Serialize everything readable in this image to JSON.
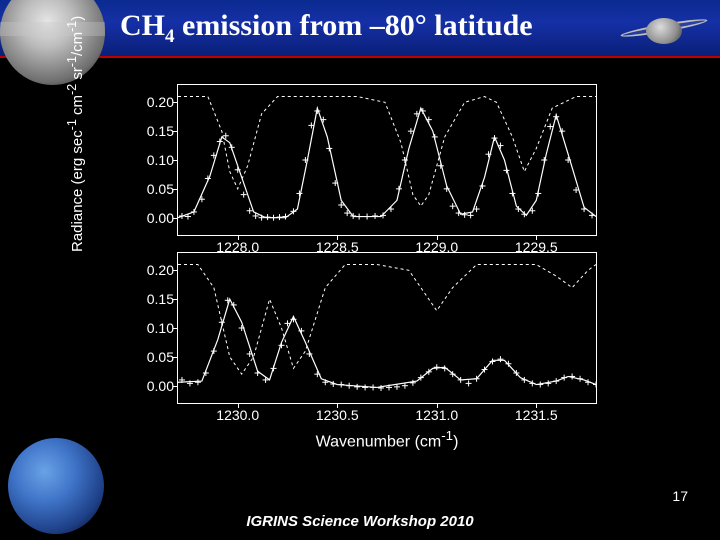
{
  "slide": {
    "title_html": "CH<sub>4</sub> emission from –80° latitude",
    "footer": "IGRINS Science Workshop 2010",
    "page_number": "17"
  },
  "figure": {
    "ylabel_html": "Radiance (erg sec<sup>-1</sup> cm<sup>-2</sup> sr<sup>-1</sup>/cm<sup>-1</sup>)",
    "xlabel_html": "Wavenumber (cm<sup>-1</sup>)",
    "panel_bg": "#000000",
    "axis_color": "#ffffff",
    "marker_color": "#ffffff",
    "line_color": "#ffffff",
    "tick_fontsize": 14,
    "label_fontsize": 15,
    "top": {
      "xlim": [
        1227.7,
        1229.8
      ],
      "xticks": [
        1228.0,
        1228.5,
        1229.0,
        1229.5
      ],
      "ylim": [
        -0.03,
        0.23
      ],
      "yticks": [
        0.0,
        0.05,
        0.1,
        0.15,
        0.2
      ],
      "yticklabels": [
        "0.00",
        "0.05",
        "0.10",
        "0.15",
        "0.20"
      ],
      "data_points": [
        [
          1227.72,
          0.003
        ],
        [
          1227.75,
          0.002
        ],
        [
          1227.78,
          0.01
        ],
        [
          1227.82,
          0.032
        ],
        [
          1227.85,
          0.068
        ],
        [
          1227.88,
          0.108
        ],
        [
          1227.91,
          0.132
        ],
        [
          1227.94,
          0.142
        ],
        [
          1227.97,
          0.122
        ],
        [
          1228.0,
          0.083
        ],
        [
          1228.03,
          0.04
        ],
        [
          1228.06,
          0.012
        ],
        [
          1228.09,
          0.003
        ],
        [
          1228.12,
          0.0
        ],
        [
          1228.15,
          0.001
        ],
        [
          1228.18,
          0.0
        ],
        [
          1228.21,
          0.001
        ],
        [
          1228.24,
          0.002
        ],
        [
          1228.28,
          0.011
        ],
        [
          1228.31,
          0.042
        ],
        [
          1228.34,
          0.1
        ],
        [
          1228.37,
          0.16
        ],
        [
          1228.4,
          0.185
        ],
        [
          1228.43,
          0.17
        ],
        [
          1228.46,
          0.12
        ],
        [
          1228.49,
          0.06
        ],
        [
          1228.52,
          0.022
        ],
        [
          1228.55,
          0.008
        ],
        [
          1228.58,
          0.003
        ],
        [
          1228.61,
          0.002
        ],
        [
          1228.65,
          0.002
        ],
        [
          1228.69,
          0.003
        ],
        [
          1228.73,
          0.004
        ],
        [
          1228.77,
          0.015
        ],
        [
          1228.81,
          0.05
        ],
        [
          1228.84,
          0.1
        ],
        [
          1228.87,
          0.15
        ],
        [
          1228.9,
          0.18
        ],
        [
          1228.93,
          0.185
        ],
        [
          1228.96,
          0.17
        ],
        [
          1228.99,
          0.14
        ],
        [
          1229.02,
          0.09
        ],
        [
          1229.05,
          0.05
        ],
        [
          1229.08,
          0.02
        ],
        [
          1229.11,
          0.008
        ],
        [
          1229.14,
          0.005
        ],
        [
          1229.17,
          0.004
        ],
        [
          1229.2,
          0.015
        ],
        [
          1229.23,
          0.055
        ],
        [
          1229.26,
          0.11
        ],
        [
          1229.29,
          0.138
        ],
        [
          1229.32,
          0.125
        ],
        [
          1229.35,
          0.082
        ],
        [
          1229.38,
          0.042
        ],
        [
          1229.41,
          0.015
        ],
        [
          1229.44,
          0.006
        ],
        [
          1229.48,
          0.012
        ],
        [
          1229.51,
          0.042
        ],
        [
          1229.54,
          0.1
        ],
        [
          1229.57,
          0.158
        ],
        [
          1229.6,
          0.175
        ],
        [
          1229.63,
          0.15
        ],
        [
          1229.66,
          0.1
        ],
        [
          1229.7,
          0.048
        ],
        [
          1229.74,
          0.015
        ],
        [
          1229.78,
          0.004
        ]
      ],
      "model": [
        [
          1227.7,
          0.0
        ],
        [
          1227.78,
          0.01
        ],
        [
          1227.86,
          0.072
        ],
        [
          1227.92,
          0.14
        ],
        [
          1227.96,
          0.13
        ],
        [
          1228.02,
          0.07
        ],
        [
          1228.08,
          0.01
        ],
        [
          1228.14,
          0.0
        ],
        [
          1228.24,
          0.0
        ],
        [
          1228.3,
          0.015
        ],
        [
          1228.35,
          0.1
        ],
        [
          1228.4,
          0.19
        ],
        [
          1228.45,
          0.14
        ],
        [
          1228.52,
          0.03
        ],
        [
          1228.58,
          0.002
        ],
        [
          1228.72,
          0.002
        ],
        [
          1228.8,
          0.03
        ],
        [
          1228.86,
          0.12
        ],
        [
          1228.92,
          0.19
        ],
        [
          1228.98,
          0.15
        ],
        [
          1229.05,
          0.055
        ],
        [
          1229.12,
          0.006
        ],
        [
          1229.18,
          0.01
        ],
        [
          1229.24,
          0.07
        ],
        [
          1229.29,
          0.14
        ],
        [
          1229.34,
          0.1
        ],
        [
          1229.4,
          0.02
        ],
        [
          1229.45,
          0.004
        ],
        [
          1229.5,
          0.03
        ],
        [
          1229.55,
          0.11
        ],
        [
          1229.6,
          0.178
        ],
        [
          1229.66,
          0.11
        ],
        [
          1229.74,
          0.018
        ],
        [
          1229.8,
          0.002
        ]
      ],
      "transmission": [
        [
          1227.7,
          0.21
        ],
        [
          1227.85,
          0.21
        ],
        [
          1227.92,
          0.15
        ],
        [
          1227.96,
          0.08
        ],
        [
          1228.0,
          0.05
        ],
        [
          1228.05,
          0.09
        ],
        [
          1228.12,
          0.18
        ],
        [
          1228.2,
          0.21
        ],
        [
          1228.6,
          0.21
        ],
        [
          1228.74,
          0.2
        ],
        [
          1228.82,
          0.13
        ],
        [
          1228.88,
          0.04
        ],
        [
          1228.92,
          0.02
        ],
        [
          1228.96,
          0.04
        ],
        [
          1229.04,
          0.14
        ],
        [
          1229.14,
          0.2
        ],
        [
          1229.24,
          0.21
        ],
        [
          1229.3,
          0.2
        ],
        [
          1229.38,
          0.14
        ],
        [
          1229.44,
          0.08
        ],
        [
          1229.5,
          0.12
        ],
        [
          1229.58,
          0.19
        ],
        [
          1229.7,
          0.21
        ],
        [
          1229.8,
          0.21
        ]
      ]
    },
    "bot": {
      "xlim": [
        1229.7,
        1231.8
      ],
      "xticks": [
        1230.0,
        1230.5,
        1231.0,
        1231.5
      ],
      "ylim": [
        -0.03,
        0.23
      ],
      "yticks": [
        0.0,
        0.05,
        0.1,
        0.15,
        0.2
      ],
      "yticklabels": [
        "0.00",
        "0.05",
        "0.10",
        "0.15",
        "0.20"
      ],
      "data_points": [
        [
          1229.72,
          0.01
        ],
        [
          1229.76,
          0.004
        ],
        [
          1229.8,
          0.006
        ],
        [
          1229.84,
          0.022
        ],
        [
          1229.88,
          0.06
        ],
        [
          1229.92,
          0.11
        ],
        [
          1229.95,
          0.148
        ],
        [
          1229.98,
          0.14
        ],
        [
          1230.02,
          0.1
        ],
        [
          1230.06,
          0.055
        ],
        [
          1230.1,
          0.022
        ],
        [
          1230.14,
          0.01
        ],
        [
          1230.18,
          0.03
        ],
        [
          1230.22,
          0.07
        ],
        [
          1230.25,
          0.108
        ],
        [
          1230.28,
          0.115
        ],
        [
          1230.32,
          0.095
        ],
        [
          1230.36,
          0.055
        ],
        [
          1230.4,
          0.02
        ],
        [
          1230.44,
          0.006
        ],
        [
          1230.48,
          0.003
        ],
        [
          1230.52,
          0.002
        ],
        [
          1230.56,
          0.0
        ],
        [
          1230.6,
          -0.002
        ],
        [
          1230.64,
          -0.003
        ],
        [
          1230.68,
          -0.003
        ],
        [
          1230.72,
          -0.004
        ],
        [
          1230.76,
          -0.003
        ],
        [
          1230.8,
          -0.002
        ],
        [
          1230.84,
          0.0
        ],
        [
          1230.88,
          0.005
        ],
        [
          1230.92,
          0.014
        ],
        [
          1230.96,
          0.024
        ],
        [
          1231.0,
          0.032
        ],
        [
          1231.04,
          0.03
        ],
        [
          1231.08,
          0.02
        ],
        [
          1231.12,
          0.01
        ],
        [
          1231.16,
          0.004
        ],
        [
          1231.2,
          0.012
        ],
        [
          1231.24,
          0.028
        ],
        [
          1231.28,
          0.042
        ],
        [
          1231.32,
          0.046
        ],
        [
          1231.36,
          0.038
        ],
        [
          1231.4,
          0.022
        ],
        [
          1231.44,
          0.01
        ],
        [
          1231.48,
          0.004
        ],
        [
          1231.52,
          0.002
        ],
        [
          1231.56,
          0.004
        ],
        [
          1231.6,
          0.008
        ],
        [
          1231.64,
          0.014
        ],
        [
          1231.68,
          0.016
        ],
        [
          1231.72,
          0.012
        ],
        [
          1231.76,
          0.006
        ],
        [
          1231.8,
          0.002
        ]
      ],
      "model": [
        [
          1229.7,
          0.006
        ],
        [
          1229.82,
          0.008
        ],
        [
          1229.9,
          0.08
        ],
        [
          1229.96,
          0.15
        ],
        [
          1230.02,
          0.11
        ],
        [
          1230.1,
          0.025
        ],
        [
          1230.16,
          0.01
        ],
        [
          1230.22,
          0.075
        ],
        [
          1230.28,
          0.12
        ],
        [
          1230.34,
          0.075
        ],
        [
          1230.42,
          0.012
        ],
        [
          1230.5,
          0.002
        ],
        [
          1230.7,
          -0.003
        ],
        [
          1230.9,
          0.008
        ],
        [
          1230.98,
          0.03
        ],
        [
          1231.04,
          0.032
        ],
        [
          1231.12,
          0.01
        ],
        [
          1231.2,
          0.012
        ],
        [
          1231.28,
          0.044
        ],
        [
          1231.34,
          0.044
        ],
        [
          1231.42,
          0.014
        ],
        [
          1231.5,
          0.002
        ],
        [
          1231.6,
          0.008
        ],
        [
          1231.66,
          0.016
        ],
        [
          1231.74,
          0.01
        ],
        [
          1231.8,
          0.002
        ]
      ],
      "transmission": [
        [
          1229.7,
          0.21
        ],
        [
          1229.8,
          0.21
        ],
        [
          1229.88,
          0.17
        ],
        [
          1229.96,
          0.05
        ],
        [
          1230.02,
          0.02
        ],
        [
          1230.08,
          0.05
        ],
        [
          1230.16,
          0.15
        ],
        [
          1230.22,
          0.1
        ],
        [
          1230.28,
          0.03
        ],
        [
          1230.34,
          0.06
        ],
        [
          1230.44,
          0.17
        ],
        [
          1230.54,
          0.21
        ],
        [
          1230.7,
          0.21
        ],
        [
          1230.86,
          0.2
        ],
        [
          1230.94,
          0.16
        ],
        [
          1231.0,
          0.13
        ],
        [
          1231.08,
          0.17
        ],
        [
          1231.2,
          0.21
        ],
        [
          1231.5,
          0.21
        ],
        [
          1231.6,
          0.19
        ],
        [
          1231.68,
          0.17
        ],
        [
          1231.76,
          0.2
        ],
        [
          1231.8,
          0.21
        ]
      ]
    }
  }
}
